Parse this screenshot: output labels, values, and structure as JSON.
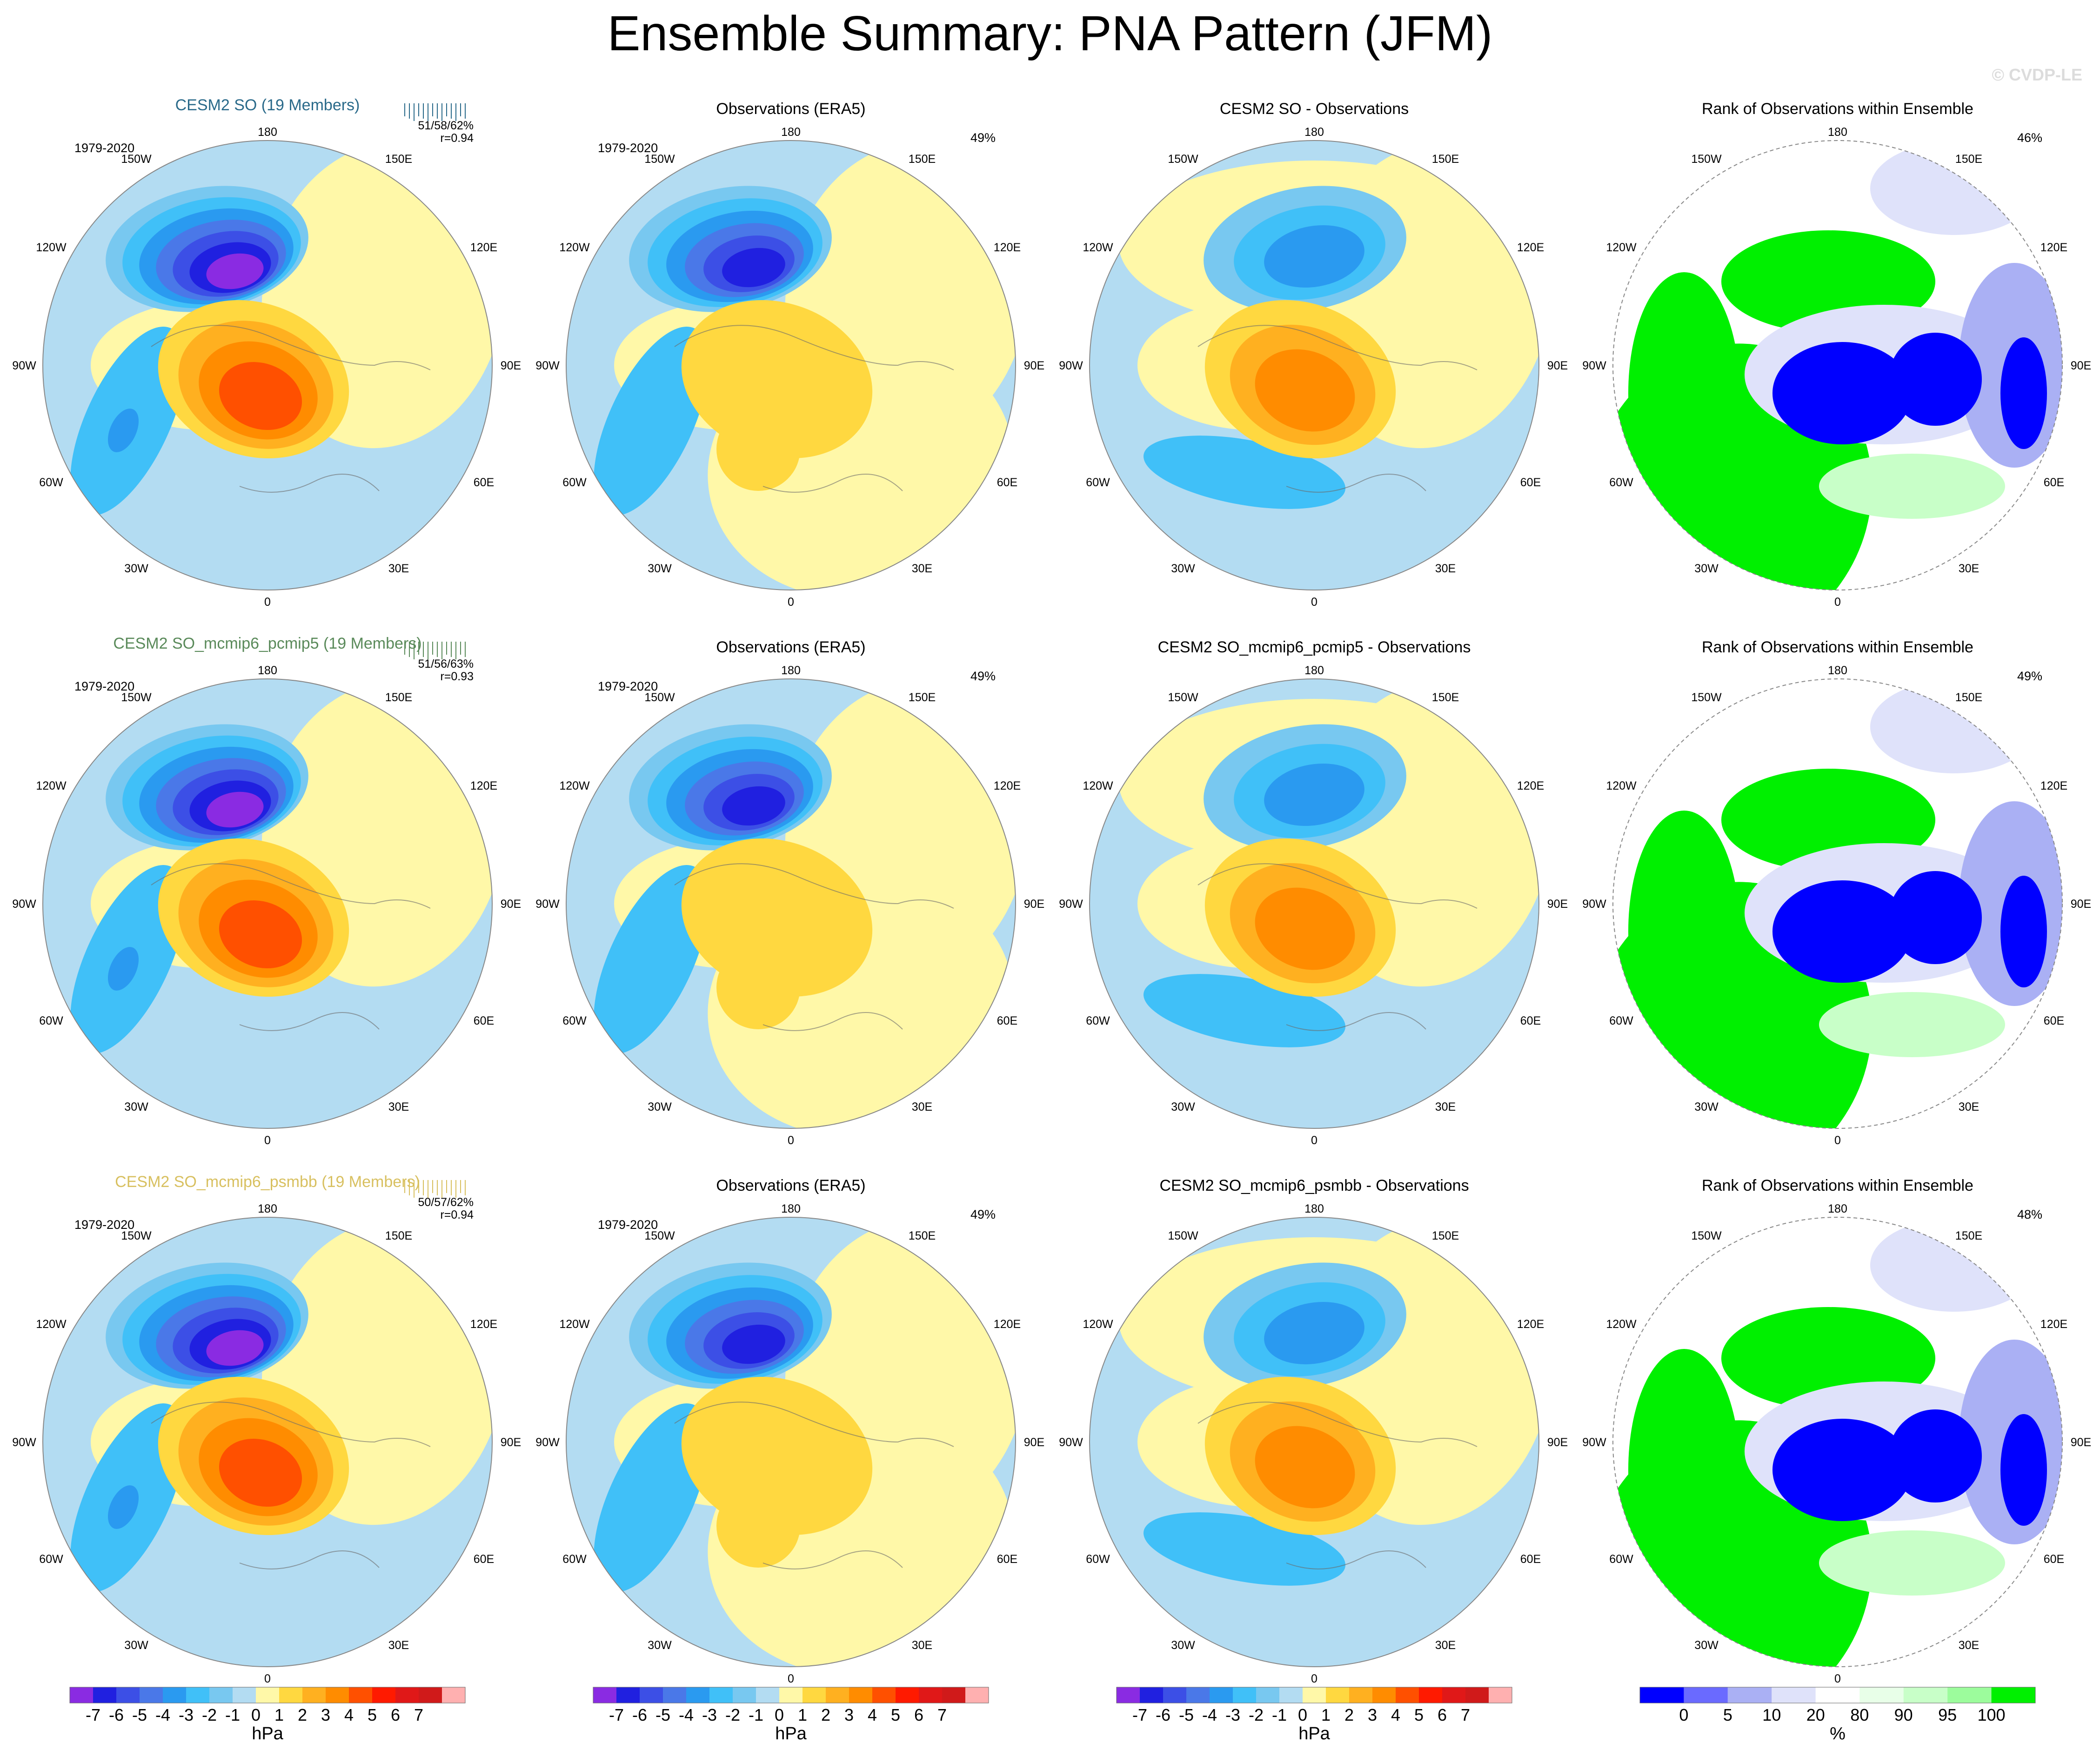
{
  "page": {
    "title": "Ensemble Summary: PNA Pattern (JFM)",
    "watermark": "© CVDP-LE"
  },
  "colors": {
    "ocean_bg": "#b3dcf2",
    "land_bg": "#fff8a8",
    "rank_white": "#ffffff"
  },
  "rows": [
    {
      "model_title": "CESM2 SO (19 Members)",
      "model_title_color": "#2a6a8a",
      "period": "1979-2020",
      "stats": "51/58/62%",
      "corr": "r=0.94",
      "obs_title": "Observations (ERA5)",
      "obs_period": "1979-2020",
      "obs_pct": "49%",
      "diff_title": "CESM2 SO - Observations",
      "rank_title": "Rank of Observations within Ensemble",
      "rank_pct": "46%"
    },
    {
      "model_title": "CESM2 SO_mcmip6_pcmip5 (19 Members)",
      "model_title_color": "#5a8a5a",
      "period": "1979-2020",
      "stats": "51/56/63%",
      "corr": "r=0.93",
      "obs_title": "Observations (ERA5)",
      "obs_period": "1979-2020",
      "obs_pct": "49%",
      "diff_title": "CESM2 SO_mcmip6_pcmip5 - Observations",
      "rank_title": "Rank of Observations within Ensemble",
      "rank_pct": "49%"
    },
    {
      "model_title": "CESM2 SO_mcmip6_psmbb (19 Members)",
      "model_title_color": "#d8c060",
      "period": "1979-2020",
      "stats": "50/57/62%",
      "corr": "r=0.94",
      "obs_title": "Observations (ERA5)",
      "obs_period": "1979-2020",
      "obs_pct": "49%",
      "diff_title": "CESM2 SO_mcmip6_psmbb - Observations",
      "rank_title": "Rank of Observations within Ensemble",
      "rank_pct": "48%"
    }
  ],
  "geo_labels": {
    "top": "180",
    "bottom": "0",
    "left": "90W",
    "right": "90E",
    "upper_left": "150W",
    "upper_right": "150E",
    "mid_upper_left": "120W",
    "mid_upper_right": "120E",
    "mid_lower_left": "60W",
    "mid_lower_right": "60E",
    "lower_left": "30W",
    "lower_right": "30E"
  },
  "chart_data": [
    {
      "type": "heatmap",
      "name": "PNA pattern sea-level pressure regression (model / observations / difference)",
      "units": "hPa",
      "levels": [
        -7,
        -6,
        -5,
        -4,
        -3,
        -2,
        -1,
        0,
        1,
        2,
        3,
        4,
        5,
        6,
        7
      ],
      "tick_labels": [
        "-7",
        "-6",
        "-5",
        "-4",
        "-3",
        "-2",
        "-1",
        "0",
        "1",
        "2",
        "3",
        "4",
        "5",
        "6",
        "7"
      ],
      "colors": [
        "#8a2be2",
        "#2020e0",
        "#3c4fe6",
        "#4a78e8",
        "#2a9af0",
        "#40c0f8",
        "#78c8f0",
        "#b3dcf2",
        "#fff8a8",
        "#ffd840",
        "#ffb020",
        "#ff8c00",
        "#ff5000",
        "#ff1a00",
        "#e01818",
        "#d01a1a",
        "#ffb0b0"
      ],
      "colorbar_label": "hPa"
    },
    {
      "type": "heatmap",
      "name": "Rank of observations within ensemble",
      "units": "%",
      "levels": [
        0,
        5,
        10,
        20,
        80,
        90,
        95,
        100
      ],
      "tick_labels": [
        "0",
        "5",
        "10",
        "20",
        "80",
        "90",
        "95",
        "100"
      ],
      "colors": [
        "#0000ff",
        "#6a6aff",
        "#aab0f4",
        "#dfe2fa",
        "#ffffff",
        "#e8ffe8",
        "#c8ffc8",
        "#9cfc9c",
        "#00f000"
      ],
      "colorbar_label": "%"
    }
  ]
}
